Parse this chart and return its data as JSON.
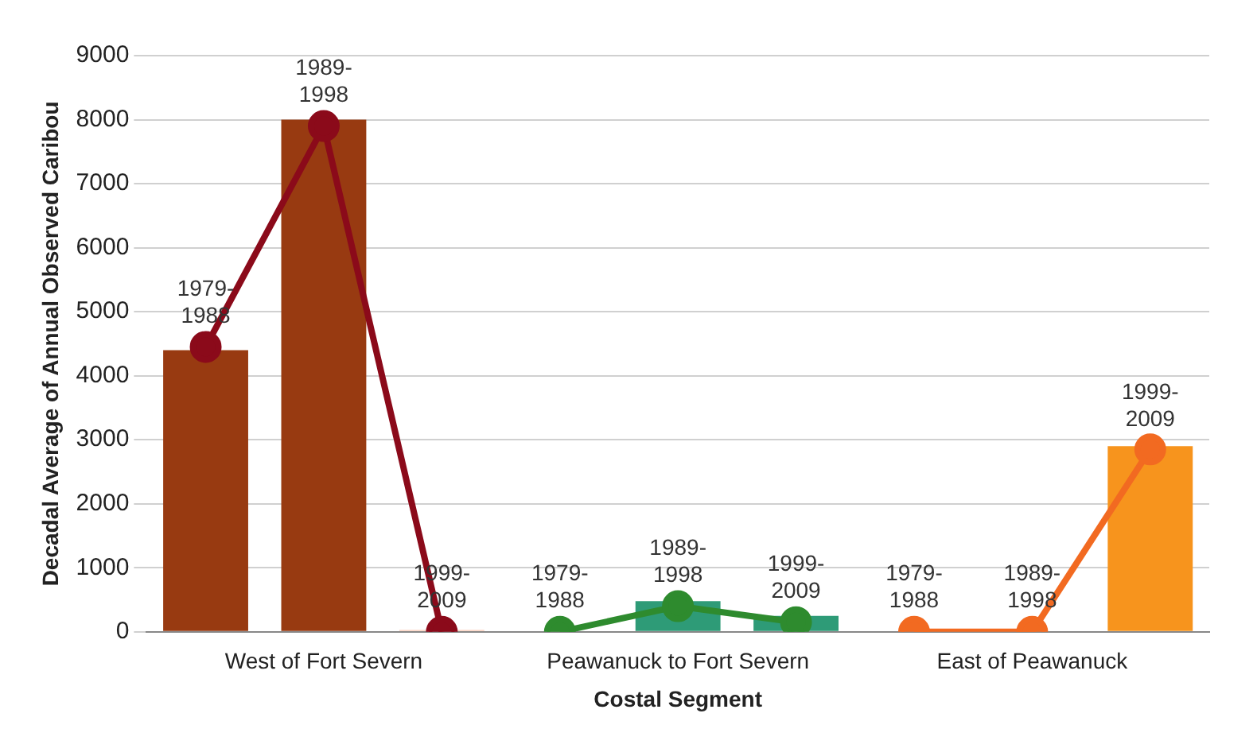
{
  "chart_data": {
    "type": "bar",
    "xlabel": "Costal Segment",
    "ylabel": "Decadal Average of Annual Observed Caribou",
    "categories": [
      null,
      "West of Fort Severn",
      null,
      null,
      "Peawanuck to Fort Severn",
      null,
      null,
      "East of Peawanuck",
      null
    ],
    "series": [
      {
        "colors": [
          "#983a11",
          "#983a11",
          "#fbc9b4",
          "#2e9b77",
          "#2e9b77",
          "#2e9b77",
          "#f7941d",
          "#f7941d",
          "#f7941d"
        ],
        "values": [
          4400,
          8000,
          30,
          0,
          480,
          250,
          0,
          0,
          2900
        ],
        "value_labels": [
          "1979-1988",
          "1989-1998",
          "1999-2009",
          "1979-1988",
          "1989-1998",
          "1999-2009",
          "1979-1988",
          "1989-1998",
          "1999-2009"
        ]
      },
      {
        "type": "line",
        "color": "#8b0a1a",
        "values": [
          4450,
          7900,
          0,
          null,
          null,
          null,
          null,
          null,
          null
        ]
      },
      {
        "type": "line",
        "color": "#2e8b2e",
        "values": [
          null,
          null,
          null,
          0,
          400,
          150,
          null,
          null,
          null
        ]
      },
      {
        "type": "line",
        "color": "#f26a21",
        "values": [
          null,
          null,
          null,
          null,
          null,
          null,
          0,
          0,
          2850
        ]
      }
    ],
    "ylim": [
      0,
      9000
    ],
    "yticks": [
      0,
      1000,
      2000,
      3000,
      4000,
      5000,
      6000,
      7000,
      8000,
      9000
    ],
    "grid": "y",
    "legend": false,
    "marker": "circle",
    "line_style": "solid"
  }
}
